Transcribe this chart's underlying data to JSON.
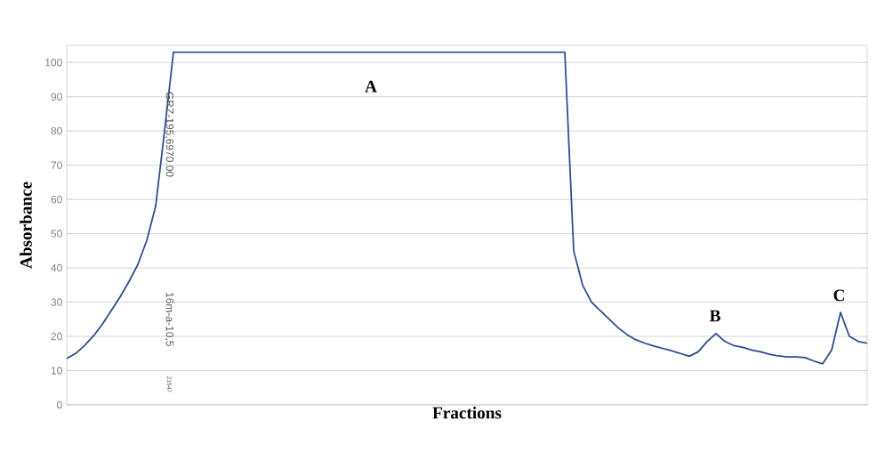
{
  "chart_data": {
    "type": "line",
    "xlabel": "Fractions",
    "ylabel": "Absorbance",
    "categories": [
      null,
      null,
      null,
      null,
      null,
      null,
      null,
      null,
      null,
      null,
      null,
      null,
      null,
      null,
      null,
      null,
      null,
      null,
      null,
      null,
      null,
      null,
      null,
      null,
      null,
      null,
      null,
      null,
      null,
      null,
      null,
      null,
      null,
      null,
      null,
      null,
      null,
      null,
      null,
      null,
      null,
      null,
      null,
      null,
      null,
      null,
      null,
      null,
      null,
      null,
      null,
      null,
      null,
      null,
      null,
      null,
      null,
      null,
      null,
      null,
      null,
      null,
      null,
      null,
      null,
      null,
      null,
      null,
      null,
      null,
      null,
      null,
      null,
      null,
      null,
      null,
      null,
      null,
      null,
      null,
      null,
      null,
      null,
      null,
      null,
      null,
      null,
      null,
      null,
      null,
      null
    ],
    "series": [
      {
        "color": "#2b4a8e",
        "values": [
          13.5,
          15,
          17.3,
          20.1,
          23.5,
          27.5,
          31.5,
          36,
          41,
          48,
          58,
          80,
          103,
          103,
          103,
          103,
          103,
          103,
          103,
          103,
          103,
          103,
          103,
          103,
          103,
          103,
          103,
          103,
          103,
          103,
          103,
          103,
          103,
          103,
          103,
          103,
          103,
          103,
          103,
          103,
          103,
          103,
          103,
          103,
          103,
          103,
          103,
          103,
          103,
          103,
          103,
          103,
          103,
          103,
          103,
          103,
          103,
          45,
          35,
          30,
          27.5,
          25,
          22.5,
          20.5,
          19,
          18,
          17.2,
          16.5,
          15.8,
          15,
          14.2,
          15.5,
          18.5,
          20.8,
          18.5,
          17.3,
          16.8,
          16,
          15.5,
          14.8,
          14.3,
          14,
          14,
          13.8,
          12.8,
          12,
          16,
          27,
          20,
          18.5,
          18
        ]
      }
    ],
    "ylim": [
      0,
      105
    ],
    "yticks": [
      0,
      10,
      20,
      30,
      40,
      50,
      60,
      70,
      80,
      90,
      100
    ],
    "grid": "y",
    "marker": "none",
    "line_style": "solid",
    "annotations": [
      "A",
      "B",
      "C",
      "GRZ-195,6970.00",
      "16m-a-10,5",
      "21947"
    ]
  }
}
